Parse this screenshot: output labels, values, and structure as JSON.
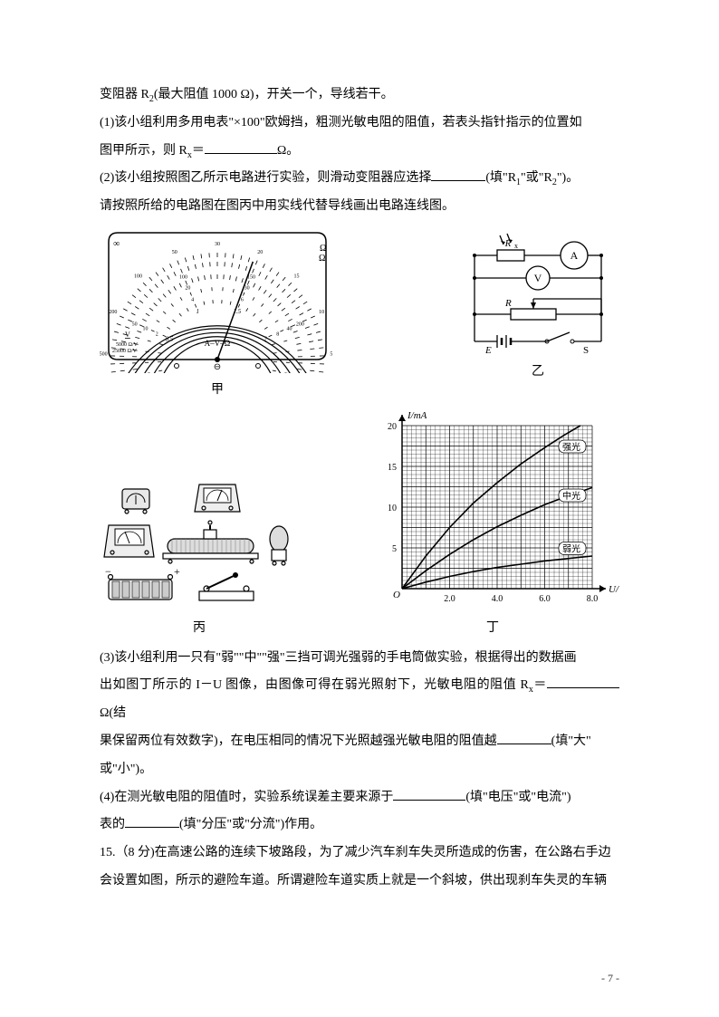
{
  "text": {
    "line1_a": "变阻器 R",
    "line1_sub": "2",
    "line1_b": "(最大阻值 1000 Ω)，开关一个，导线若干。",
    "line2_a": "(1)该小组利用多用电表\"×100\"欧姆挡，粗测光敏电阻的阻值，若表头指针指示的位置如",
    "line3_a": "图甲所示，则 R",
    "line3_sub": "x",
    "line3_b": "＝",
    "line3_c": "Ω。",
    "line4_a": "(2)该小组按照图乙所示电路进行实验，则滑动变阻器应选择",
    "line4_b": "(填\"R",
    "line4_sub1": "1",
    "line4_c": "\"或\"R",
    "line4_sub2": "2",
    "line4_d": "\")。",
    "line5": "请按照所给的电路图在图丙中用实线代替导线画出电路连线图。",
    "fig_jia": "甲",
    "fig_yi": "乙",
    "fig_bing": "丙",
    "fig_ding": "丁",
    "line6_a": "(3)该小组利用一只有\"弱\"\"中\"\"强\"三挡可调光强弱的手电筒做实验，根据得出的数据画",
    "line7_a": "出如图丁所示的 I－U 图像，由图像可得在弱光照射下，光敏电阻的阻值 R",
    "line7_sub": "x",
    "line7_b": "＝",
    "line7_c": "Ω(结",
    "line8_a": "果保留两位有效数字)，在电压相同的情况下光照越强光敏电阻的阻值越",
    "line8_b": "(填\"大\"",
    "line9": "或\"小\")。",
    "line10_a": "(4)在测光敏电阻的阻值时，实验系统误差主要来源于",
    "line10_b": "(填\"电压\"或\"电流\")",
    "line11_a": "表的",
    "line11_b": "(填\"分压\"或\"分流\")作用。",
    "line12": "15.（8 分)在高速公路的连续下坡路段，为了减少汽车刹车失灵所造成的伤害，在公路右手边",
    "line13": "会设置如图，所示的避险车道。所谓避险车道实质上就是一个斜坡，供出现刹车失灵的车辆",
    "page_num": "- 7 -"
  },
  "meter": {
    "label_center": "A–V–Ω",
    "label_left_top": "V",
    "label_left_1": "5000 Ω/V",
    "label_left_2": "25000 Ω/V",
    "ohm_sym": "Ω",
    "infinity": "∞",
    "ohm_ticks": [
      "1K",
      "500",
      "200",
      "100",
      "50",
      "30",
      "20",
      "15",
      "10",
      "5",
      "0"
    ],
    "mid_ticks": [
      "0",
      "50",
      "100",
      "150",
      "200",
      "250"
    ],
    "dc_ticks": [
      "0",
      "10",
      "20",
      "30",
      "40",
      "50"
    ],
    "v_ticks": [
      "0",
      "2",
      "4",
      "6",
      "8",
      "10"
    ],
    "bottom_ticks": [
      "0",
      "0.5",
      "1",
      "1.5",
      "2",
      "2.5"
    ],
    "needle_angle_deg": 70
  },
  "circuit": {
    "labels": {
      "Rx": "R",
      "Rx_sub": "x",
      "A": "A",
      "V": "V",
      "R": "R",
      "E": "E",
      "S": "S"
    }
  },
  "graph": {
    "x_label": "U/V",
    "y_label": "I/mA",
    "x_ticks": [
      "2.0",
      "4.0",
      "6.0",
      "8.0"
    ],
    "y_ticks": [
      "5",
      "10",
      "15",
      "20"
    ],
    "x_max": 8.0,
    "y_max": 20,
    "curves": {
      "strong": {
        "label": "强光",
        "points": [
          [
            0,
            0
          ],
          [
            1,
            4
          ],
          [
            2,
            7.5
          ],
          [
            3,
            10.5
          ],
          [
            4,
            13
          ],
          [
            5,
            15.3
          ],
          [
            6,
            17.3
          ],
          [
            6.8,
            18.8
          ],
          [
            7.5,
            20
          ]
        ]
      },
      "mid": {
        "label": "中光",
        "points": [
          [
            0,
            0
          ],
          [
            1,
            2.2
          ],
          [
            2,
            4.2
          ],
          [
            3,
            6
          ],
          [
            4,
            7.6
          ],
          [
            5,
            9
          ],
          [
            6,
            10.3
          ],
          [
            7,
            11.4
          ],
          [
            8,
            12.4
          ]
        ]
      },
      "weak": {
        "label": "弱光",
        "points": [
          [
            0,
            0
          ],
          [
            1,
            0.8
          ],
          [
            2,
            1.5
          ],
          [
            3,
            2.1
          ],
          [
            4,
            2.6
          ],
          [
            5,
            3.0
          ],
          [
            6,
            3.4
          ],
          [
            7,
            3.7
          ],
          [
            8,
            4.0
          ]
        ]
      }
    },
    "grid_color": "#000000",
    "line_color": "#000000",
    "origin": "O"
  },
  "colors": {
    "text": "#000000",
    "bg": "#ffffff",
    "line": "#000000",
    "fill_light": "#f0f0f0",
    "fill_mid": "#cccccc"
  }
}
